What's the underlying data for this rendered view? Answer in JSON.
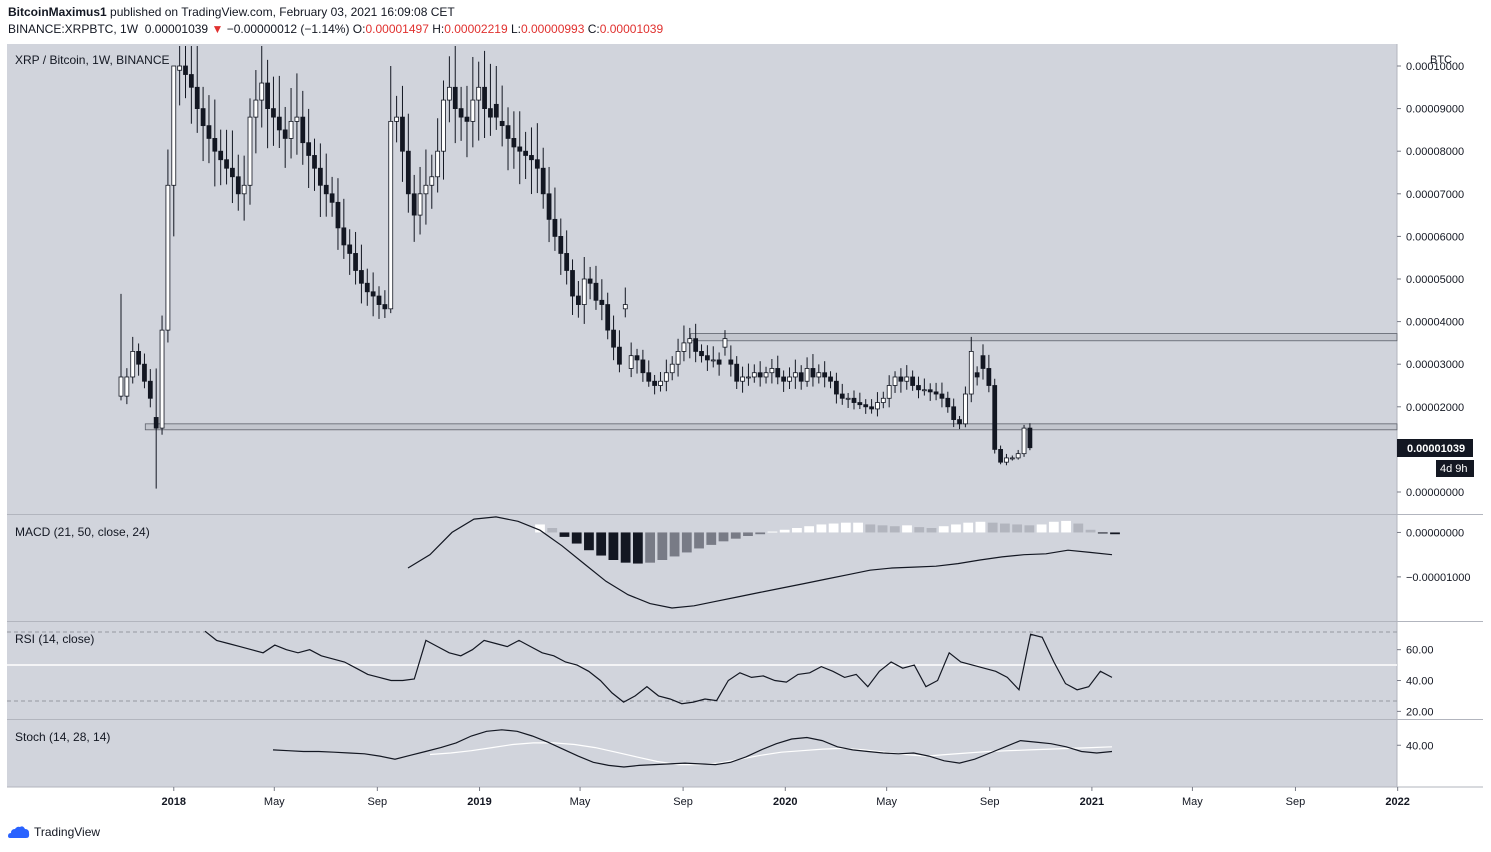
{
  "header": {
    "author": "BitcoinMaximus1",
    "published_text": "published on TradingView.com, February 03, 2021 16:09:08 CET",
    "symbol": "BINANCE:XRPBTC, 1W",
    "last": "0.00001039",
    "change": "−0.00000012 (−1.14%)",
    "o_label": "O:",
    "o": "0.00001497",
    "h_label": "H:",
    "h": "0.00002219",
    "l_label": "L:",
    "l": "0.00000993",
    "c_label": "C:",
    "c": "0.00001039"
  },
  "footer": {
    "brand": "TradingView"
  },
  "colors": {
    "panel": "#d1d4dc",
    "axis_bg": "#ffffff",
    "candle_up": "#ffffff",
    "candle_down": "#131722",
    "red": "#e0312f"
  },
  "chart_data": {
    "type": "candlestick",
    "title": "XRP / Bitcoin, 1W, BINANCE",
    "currency": "BTC",
    "price_label": "0.00001039",
    "countdown": "4d 9h",
    "y_ticks": [
      "0.00010000",
      "0.00009000",
      "0.00008000",
      "0.00007000",
      "0.00006000",
      "0.00005000",
      "0.00004000",
      "0.00003000",
      "0.00002000",
      "0.00000000"
    ],
    "price_range": [
      0,
      0.0001
    ],
    "x_ticks": [
      "2018",
      "May",
      "Sep",
      "2019",
      "May",
      "Sep",
      "2020",
      "May",
      "Sep",
      "2021",
      "May",
      "Sep",
      "2022"
    ],
    "zones": [
      {
        "from_date": "2019-09-10",
        "low": 3.55e-05,
        "high": 3.72e-05
      },
      {
        "from_date": "2017-11-28",
        "low": 1.46e-05,
        "high": 1.6e-05
      }
    ],
    "key_candles": [
      {
        "date": "2017-10-30",
        "open": 2.25e-05,
        "high": 4.65e-05,
        "low": 2.15e-05,
        "close": 2.7e-05
      },
      {
        "date": "2017-12-11",
        "open": 1.75e-05,
        "high": 2.9e-05,
        "low": 8e-07,
        "close": 1.5e-05
      },
      {
        "date": "2018-01-01",
        "open": 7.2e-05,
        "high": 0.0001,
        "low": 6e-05,
        "close": 0.0001
      },
      {
        "date": "2018-09-17",
        "open": 4.3e-05,
        "high": 0.0001,
        "low": 4.2e-05,
        "close": 8.7e-05
      },
      {
        "date": "2019-01-21",
        "open": 9.1e-05,
        "high": 0.0001,
        "low": 8.5e-05,
        "close": 8.8e-05
      },
      {
        "date": "2019-06-24",
        "open": 4.3e-05,
        "high": 4.8e-05,
        "low": 4.1e-05,
        "close": 4.4e-05
      },
      {
        "date": "2019-10-21",
        "open": 3.4e-05,
        "high": 3.8e-05,
        "low": 3.2e-05,
        "close": 3.6e-05
      },
      {
        "date": "2020-08-17",
        "open": 2.8e-05,
        "high": 2.95e-05,
        "low": 2.5e-05,
        "close": 2.7e-05
      },
      {
        "date": "2020-11-23",
        "open": 3e-05,
        "high": 4.3e-05,
        "low": 2.8e-05,
        "close": 3.3e-05
      },
      {
        "date": "2020-12-21",
        "open": 2e-05,
        "high": 2.15e-05,
        "low": 6e-06,
        "close": 7e-06
      },
      {
        "date": "2021-01-25",
        "open": 1.5e-05,
        "high": 2.22e-05,
        "low": 9.9e-06,
        "close": 1.04e-05
      }
    ],
    "candles_weekly_close": [
      2.25e-05,
      2.7e-05,
      3.3e-05,
      3e-05,
      2.6e-05,
      2.2e-05,
      1.5e-05,
      3.8e-05,
      7.2e-05,
      9.9e-05,
      0.0001,
      9.8e-05,
      9.5e-05,
      9e-05,
      8.6e-05,
      8.3e-05,
      8e-05,
      7.8e-05,
      7.6e-05,
      7.4e-05,
      7e-05,
      7.2e-05,
      8.8e-05,
      9.2e-05,
      9.6e-05,
      9e-05,
      8.8e-05,
      8.5e-05,
      8.3e-05,
      8.7e-05,
      8.8e-05,
      8.2e-05,
      7.9e-05,
      7.6e-05,
      7.2e-05,
      7e-05,
      6.8e-05,
      6.2e-05,
      5.8e-05,
      5.6e-05,
      5.2e-05,
      4.9e-05,
      4.7e-05,
      4.6e-05,
      4.4e-05,
      4.3e-05,
      8.7e-05,
      8.8e-05,
      8e-05,
      7e-05,
      6.5e-05,
      7e-05,
      7.2e-05,
      7.4e-05,
      8e-05,
      9.2e-05,
      9.5e-05,
      9e-05,
      8.8e-05,
      8.7e-05,
      9.2e-05,
      9.5e-05,
      9e-05,
      8.8e-05,
      8.7e-05,
      8.6e-05,
      8.3e-05,
      8.1e-05,
      8e-05,
      7.9e-05,
      7.8e-05,
      7.6e-05,
      7e-05,
      6.4e-05,
      6e-05,
      5.6e-05,
      5.2e-05,
      4.6e-05,
      4.4e-05,
      5e-05,
      4.9e-05,
      4.5e-05,
      4.4e-05,
      3.8e-05,
      3.4e-05,
      3e-05,
      2.9e-05,
      3.2e-05,
      3.1e-05,
      2.8e-05,
      2.6e-05,
      2.5e-05,
      2.6e-05,
      2.8e-05,
      3e-05,
      3.3e-05,
      3.5e-05,
      3.6e-05,
      3.3e-05,
      3.2e-05,
      3.1e-05,
      3.1e-05,
      3e-05,
      3.1e-05,
      3e-05,
      2.6e-05,
      2.7e-05,
      2.7e-05,
      2.8e-05,
      2.7e-05,
      2.8e-05,
      2.9e-05,
      2.7e-05,
      2.6e-05,
      2.7e-05,
      2.8e-05,
      2.6e-05,
      2.9e-05,
      2.7e-05,
      2.8e-05,
      2.7e-05,
      2.6e-05,
      2.3e-05,
      2.2e-05,
      2.2e-05,
      2.1e-05,
      2.05e-05,
      2e-05,
      1.95e-05,
      2.1e-05,
      2.2e-05,
      2.5e-05,
      2.7e-05,
      2.6e-05,
      2.7e-05,
      2.5e-05,
      2.4e-05,
      2.4e-05,
      2.35e-05,
      2.3e-05,
      2.2e-05,
      2e-05,
      1.7e-05,
      1.6e-05,
      2.3e-05,
      3.3e-05,
      3.2e-05,
      2.9e-05,
      2.5e-05,
      1e-05,
      7e-06,
      8e-06,
      8e-06,
      9e-06,
      1.5e-05,
      1.04e-05
    ],
    "indicators": [
      {
        "name": "MACD (21, 50, close, 24)",
        "y_ticks": [
          "0.00000000",
          "−0.00001000"
        ],
        "range": [
          -1.88e-05,
          2.8e-06
        ]
      },
      {
        "name": "RSI (14, close)",
        "y_ticks": [
          "60.00",
          "40.00",
          "20.00"
        ],
        "range": [
          17,
          76
        ],
        "levels": [
          70,
          50,
          30
        ]
      },
      {
        "name": "Stoch (14, 28, 14)",
        "y_ticks": [
          "40.00"
        ],
        "range": [
          -10,
          70
        ]
      }
    ],
    "macd_line": [
      -8e-06,
      -5e-06,
      0.0,
      3e-06,
      3.5e-06,
      2.5e-06,
      5e-07,
      -3e-06,
      -7e-06,
      -1.1e-05,
      -1.4e-05,
      -1.6e-05,
      -1.7e-05,
      -1.65e-05,
      -1.55e-05,
      -1.45e-05,
      -1.35e-05,
      -1.25e-05,
      -1.15e-05,
      -1.05e-05,
      -9.5e-06,
      -8.5e-06,
      -8e-06,
      -7.8e-06,
      -7.6e-06,
      -7e-06,
      -6.2e-06,
      -5.5e-06,
      -5e-06,
      -4.8e-06,
      -4e-06,
      -4.5e-06,
      -5e-06
    ],
    "macd_histogram": [
      1.8e-06,
      1e-06,
      -1e-06,
      -2.5e-06,
      -4e-06,
      -5.2e-06,
      -6.2e-06,
      -6.8e-06,
      -7e-06,
      -6.8e-06,
      -6.2e-06,
      -5.4e-06,
      -4.5e-06,
      -3.6e-06,
      -2.8e-06,
      -2e-06,
      -1.4e-06,
      -8e-07,
      -4e-07,
      2e-07,
      6e-07,
      1e-06,
      1.4e-06,
      1.8e-06,
      2e-06,
      2.2e-06,
      2.2e-06,
      1.8e-06,
      1.6e-06,
      1.4e-06,
      1.6e-06,
      1.2e-06,
      1e-06,
      1.4e-06,
      1.8e-06,
      2.2e-06,
      2.4e-06,
      2.2e-06,
      2e-06,
      1.8e-06,
      1.6e-06,
      1.8e-06,
      2.4e-06,
      2.6e-06,
      2e-06,
      6e-07,
      -2e-07,
      -4e-07
    ],
    "rsi": [
      72,
      66,
      64,
      62,
      60,
      58,
      63,
      60,
      58,
      60,
      56,
      54,
      52,
      48,
      44,
      42,
      40,
      40,
      41,
      66,
      62,
      58,
      56,
      60,
      66,
      64,
      62,
      66,
      62,
      58,
      56,
      52,
      50,
      46,
      40,
      32,
      26,
      30,
      36,
      30,
      28,
      25,
      26,
      28,
      27,
      40,
      45,
      42,
      43,
      40,
      39,
      44,
      45,
      49,
      46,
      42,
      44,
      36,
      46,
      52,
      48,
      50,
      36,
      40,
      58,
      52,
      50,
      48,
      46,
      42,
      34,
      70,
      68,
      52,
      38,
      34,
      36,
      46,
      42
    ],
    "stoch_k": [
      34,
      33,
      32,
      32,
      31,
      30,
      29,
      26,
      22,
      27,
      32,
      37,
      43,
      52,
      58,
      60,
      58,
      52,
      44,
      35,
      26,
      18,
      14,
      12,
      14,
      15,
      16,
      17,
      16,
      15,
      18,
      25,
      34,
      42,
      48,
      50,
      46,
      38,
      34,
      32,
      30,
      29,
      30,
      26,
      20,
      17,
      22,
      30,
      38,
      46,
      44,
      42,
      38,
      32,
      30,
      32
    ],
    "stoch_d": [
      28,
      30,
      33,
      37,
      41,
      43,
      43,
      41,
      37,
      31,
      25,
      19,
      15,
      15,
      17,
      22,
      27,
      31,
      33,
      35,
      36,
      34,
      31,
      28,
      26,
      28,
      30,
      32,
      33,
      34,
      35,
      36,
      37,
      38
    ]
  }
}
